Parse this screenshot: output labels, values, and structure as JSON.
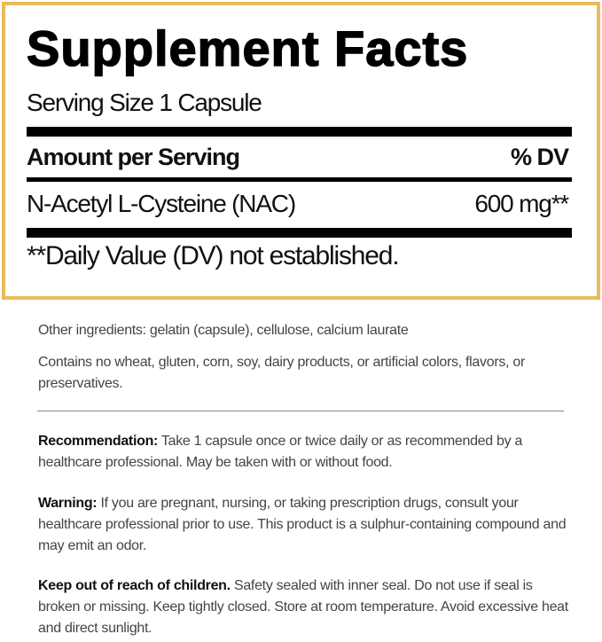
{
  "facts": {
    "title": "Supplement Facts",
    "serving_size": "Serving Size 1 Capsule",
    "header_left": "Amount per Serving",
    "header_right": "% DV",
    "ingredient_name": "N-Acetyl L-Cysteine (NAC)",
    "ingredient_amount": "600 mg**",
    "footnote": "**Daily Value (DV) not established.",
    "border_color": "#e9bb5c"
  },
  "details": {
    "other_ingredients": "Other ingredients: gelatin (capsule), cellulose, calcium laurate",
    "allergens": "Contains no wheat, gluten, corn, soy, dairy products, or artificial colors, flavors, or preservatives.",
    "recommendation_label": "Recommendation:",
    "recommendation_text": " Take 1 capsule once or twice daily or as recommended by a healthcare professional. May be taken with or without food.",
    "warning_label": "Warning:",
    "warning_text": " If you are pregnant, nursing, or taking prescription drugs, consult your healthcare professional prior to use. This product is a sulphur-containing compound and may emit an odor.",
    "storage_label": "Keep out of reach of children.",
    "storage_text": " Safety sealed with inner seal. Do not use if seal is broken or missing. Keep tightly closed. Store at room temperature. Avoid excessive heat and direct sunlight."
  }
}
